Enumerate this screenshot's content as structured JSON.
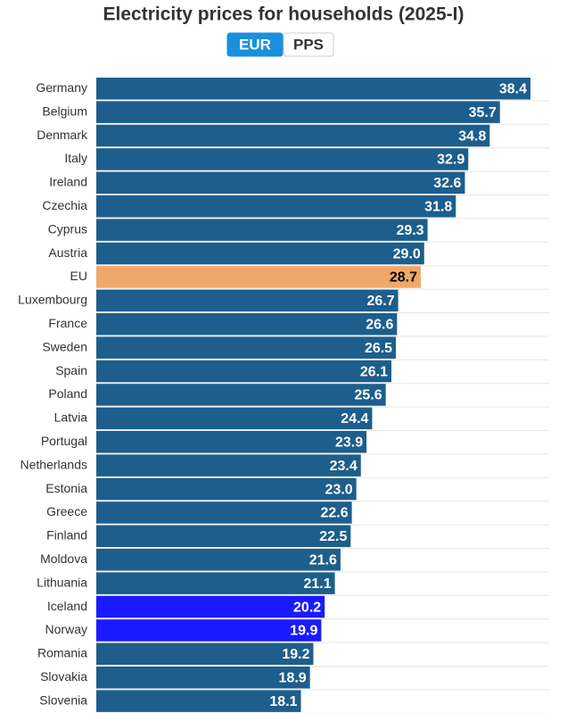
{
  "chart_data": {
    "type": "hbar",
    "title": "Electricity prices for households (2025-I)",
    "categories": [
      "Germany",
      "Belgium",
      "Denmark",
      "Italy",
      "Ireland",
      "Czechia",
      "Cyprus",
      "Austria",
      "EU",
      "Luxembourg",
      "France",
      "Sweden",
      "Spain",
      "Poland",
      "Latvia",
      "Portugal",
      "Netherlands",
      "Estonia",
      "Greece",
      "Finland",
      "Moldova",
      "Lithuania",
      "Iceland",
      "Norway",
      "Romania",
      "Slovakia",
      "Slovenia"
    ],
    "values": [
      38.4,
      35.7,
      34.8,
      32.9,
      32.6,
      31.8,
      29.3,
      29.0,
      28.7,
      26.7,
      26.6,
      26.5,
      26.1,
      25.6,
      24.4,
      23.9,
      23.4,
      23.0,
      22.6,
      22.5,
      21.6,
      21.1,
      20.2,
      19.9,
      19.2,
      18.9,
      18.1
    ],
    "value_labels": [
      "38.4",
      "35.7",
      "34.8",
      "32.9",
      "32.6",
      "31.8",
      "29.3",
      "29.0",
      "28.7",
      "26.7",
      "26.6",
      "26.5",
      "26.1",
      "25.6",
      "24.4",
      "23.9",
      "23.4",
      "23.0",
      "22.6",
      "22.5",
      "21.6",
      "21.1",
      "20.2",
      "19.9",
      "19.2",
      "18.9",
      "18.1"
    ],
    "colors": [
      "#1d5e8c",
      "#1d5e8c",
      "#1d5e8c",
      "#1d5e8c",
      "#1d5e8c",
      "#1d5e8c",
      "#1d5e8c",
      "#1d5e8c",
      "#f0a868",
      "#1d5e8c",
      "#1d5e8c",
      "#1d5e8c",
      "#1d5e8c",
      "#1d5e8c",
      "#1d5e8c",
      "#1d5e8c",
      "#1d5e8c",
      "#1d5e8c",
      "#1d5e8c",
      "#1d5e8c",
      "#1d5e8c",
      "#1d5e8c",
      "#1a1aff",
      "#1a1aff",
      "#1d5e8c",
      "#1d5e8c",
      "#1d5e8c"
    ]
  },
  "controls": {
    "buttons": [
      "EUR",
      "PPS"
    ],
    "active": 0
  }
}
